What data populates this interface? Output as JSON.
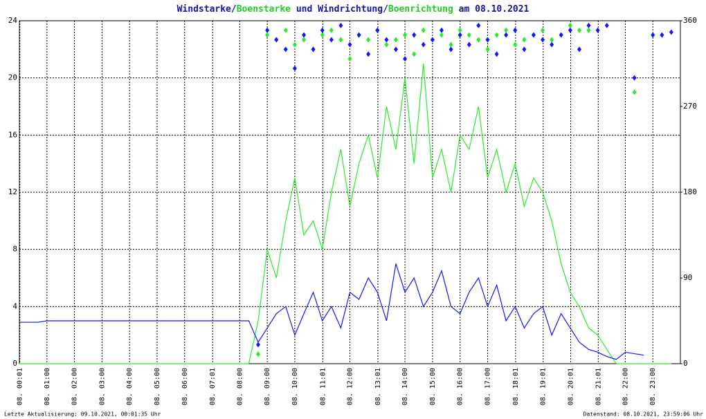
{
  "chart_data": {
    "type": "line",
    "title_connectors": [
      "/",
      " und ",
      "/",
      " am 08.10.2021"
    ],
    "footer_left": "Letzte Aktualisierung: 09.10.2021, 00:01:35 Uhr",
    "footer_right": "Datenstand: 08.10.2021, 23:59:06 Uhr",
    "grid": true,
    "xlim": [
      0,
      24
    ],
    "ylim": [
      0,
      24
    ],
    "yticks": [
      0,
      4,
      8,
      12,
      16,
      20,
      24
    ],
    "y2lim": [
      0,
      360
    ],
    "y2ticks": [
      0,
      90,
      180,
      270,
      360
    ],
    "xticks": [
      {
        "value": 0.017,
        "label": "08. 00:01"
      },
      {
        "value": 1,
        "label": "08. 01:00"
      },
      {
        "value": 2,
        "label": "08. 02:00"
      },
      {
        "value": 3,
        "label": "08. 03:00"
      },
      {
        "value": 4,
        "label": "08. 04:00"
      },
      {
        "value": 5,
        "label": "08. 05:00"
      },
      {
        "value": 6,
        "label": "08. 06:00"
      },
      {
        "value": 7.017,
        "label": "08. 07:01"
      },
      {
        "value": 8,
        "label": "08. 08:00"
      },
      {
        "value": 9,
        "label": "08. 09:00"
      },
      {
        "value": 10,
        "label": "08. 10:00"
      },
      {
        "value": 11.017,
        "label": "08. 11:01"
      },
      {
        "value": 12,
        "label": "08. 12:00"
      },
      {
        "value": 13.017,
        "label": "08. 13:01"
      },
      {
        "value": 14,
        "label": "08. 14:00"
      },
      {
        "value": 15,
        "label": "08. 15:00"
      },
      {
        "value": 16,
        "label": "08. 16:00"
      },
      {
        "value": 17,
        "label": "08. 17:00"
      },
      {
        "value": 18.017,
        "label": "08. 18:01"
      },
      {
        "value": 19.017,
        "label": "08. 19:01"
      },
      {
        "value": 20.017,
        "label": "08. 20:01"
      },
      {
        "value": 21.017,
        "label": "08. 21:01"
      },
      {
        "value": 22,
        "label": "08. 22:00"
      },
      {
        "value": 23,
        "label": "08. 23:00"
      }
    ],
    "x": [
      0,
      0.33,
      0.67,
      1,
      1.33,
      1.67,
      2,
      2.33,
      2.67,
      3,
      3.33,
      3.67,
      4,
      4.33,
      4.67,
      5,
      5.33,
      5.67,
      6,
      6.33,
      6.67,
      7,
      7.33,
      7.67,
      8,
      8.33,
      8.67,
      9,
      9.33,
      9.67,
      10,
      10.33,
      10.67,
      11,
      11.33,
      11.67,
      12,
      12.33,
      12.67,
      13,
      13.33,
      13.67,
      14,
      14.33,
      14.67,
      15,
      15.33,
      15.67,
      16,
      16.33,
      16.67,
      17,
      17.33,
      17.67,
      18,
      18.33,
      18.67,
      19,
      19.33,
      19.67,
      20,
      20.33,
      20.67,
      21,
      21.33,
      21.67,
      22,
      22.33,
      22.67,
      23,
      23.33,
      23.67
    ],
    "series": [
      {
        "name": "Windstarke",
        "color": "#1414ff",
        "style": "line",
        "axis": "y",
        "values": [
          2.9,
          2.9,
          2.9,
          3,
          3,
          3,
          3,
          3,
          3,
          3,
          3,
          3,
          3,
          3,
          3,
          3,
          3,
          3,
          3,
          3,
          3,
          3,
          3,
          3,
          3,
          3,
          1.5,
          2.5,
          3.5,
          4,
          2,
          3.5,
          5,
          3,
          4,
          2.5,
          5,
          4.5,
          6,
          5,
          3,
          7,
          5,
          6,
          4,
          5,
          6.5,
          4,
          3.5,
          5,
          6,
          4,
          5.5,
          3,
          4,
          2.5,
          3.5,
          4,
          2,
          3.5,
          2.5,
          1.5,
          1,
          0.8,
          0.5,
          0.3,
          0.8,
          0.7,
          0.6,
          null,
          null,
          null
        ]
      },
      {
        "name": "Boenstarke",
        "color": "#22ee22",
        "style": "line",
        "axis": "y",
        "values": [
          0,
          0,
          0,
          0,
          0,
          0,
          0,
          0,
          0,
          0,
          0,
          0,
          0,
          0,
          0,
          0,
          0,
          0,
          0,
          0,
          0,
          0,
          0,
          0,
          0,
          0,
          3,
          8,
          6,
          10,
          13,
          9,
          10,
          8,
          12,
          15,
          11,
          14,
          16,
          13,
          18,
          15,
          20,
          14,
          21,
          13,
          15,
          12,
          16,
          15,
          18,
          13,
          15,
          12,
          14,
          11,
          13,
          12,
          10,
          7,
          5,
          4,
          2.5,
          2,
          1,
          0,
          0,
          0,
          0,
          0,
          0,
          0
        ]
      },
      {
        "name": "Windrichtung",
        "color": "#1414ff",
        "style": "dots",
        "axis": "y2",
        "values": [
          null,
          null,
          null,
          null,
          null,
          null,
          null,
          null,
          null,
          null,
          null,
          null,
          null,
          null,
          null,
          null,
          null,
          null,
          null,
          null,
          null,
          null,
          null,
          null,
          null,
          null,
          20,
          350,
          340,
          330,
          310,
          345,
          330,
          350,
          340,
          355,
          335,
          345,
          325,
          350,
          340,
          330,
          320,
          345,
          335,
          340,
          350,
          330,
          345,
          335,
          355,
          340,
          325,
          345,
          350,
          330,
          345,
          340,
          335,
          345,
          350,
          330,
          355,
          350,
          355,
          null,
          null,
          300,
          null,
          345,
          345,
          348
        ]
      },
      {
        "name": "Boenrichtung",
        "color": "#22ee22",
        "style": "dots",
        "axis": "y2",
        "values": [
          null,
          null,
          null,
          null,
          null,
          null,
          null,
          null,
          null,
          null,
          null,
          null,
          null,
          null,
          null,
          null,
          null,
          null,
          null,
          null,
          null,
          null,
          null,
          null,
          null,
          null,
          10,
          345,
          340,
          350,
          335,
          340,
          330,
          345,
          350,
          340,
          320,
          345,
          340,
          350,
          335,
          340,
          345,
          325,
          350,
          340,
          345,
          335,
          350,
          345,
          340,
          330,
          345,
          350,
          335,
          340,
          345,
          350,
          340,
          345,
          355,
          350,
          350,
          null,
          null,
          null,
          null,
          285,
          null,
          null,
          null,
          null
        ]
      }
    ]
  }
}
